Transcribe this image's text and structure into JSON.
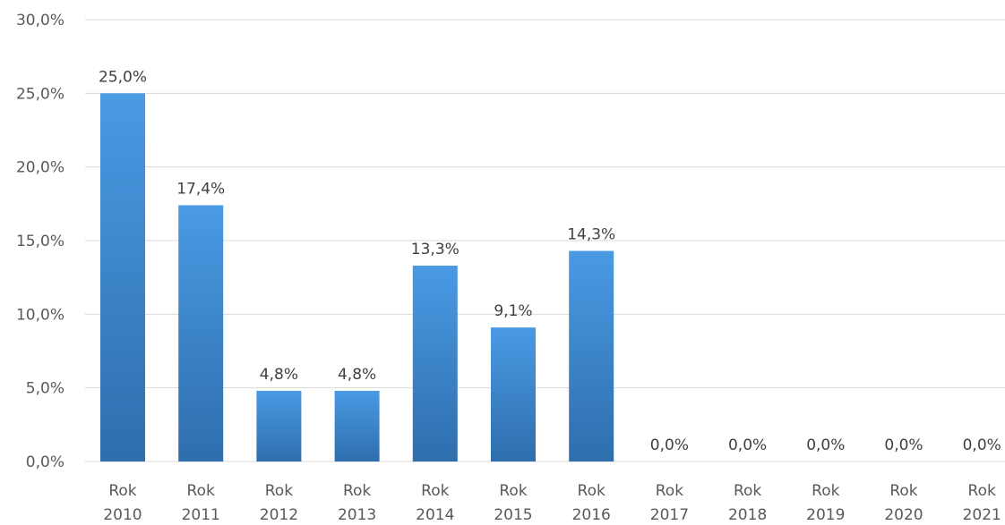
{
  "chart_data": {
    "type": "bar",
    "categories": [
      [
        "Rok",
        "2010"
      ],
      [
        "Rok",
        "2011"
      ],
      [
        "Rok",
        "2012"
      ],
      [
        "Rok",
        "2013"
      ],
      [
        "Rok",
        "2014"
      ],
      [
        "Rok",
        "2015"
      ],
      [
        "Rok",
        "2016"
      ],
      [
        "Rok",
        "2017"
      ],
      [
        "Rok",
        "2018"
      ],
      [
        "Rok",
        "2019"
      ],
      [
        "Rok",
        "2020"
      ],
      [
        "Rok",
        "2021"
      ]
    ],
    "values": [
      25.0,
      17.4,
      4.8,
      4.8,
      13.3,
      9.1,
      14.3,
      0.0,
      0.0,
      0.0,
      0.0,
      0.0
    ],
    "data_labels": [
      "25,0%",
      "17,4%",
      "4,8%",
      "4,8%",
      "13,3%",
      "9,1%",
      "14,3%",
      "0,0%",
      "0,0%",
      "0,0%",
      "0,0%",
      "0,0%"
    ],
    "y_ticks": [
      0,
      5,
      10,
      15,
      20,
      25,
      30
    ],
    "y_tick_labels": [
      "0,0%",
      "5,0%",
      "10,0%",
      "15,0%",
      "20,0%",
      "25,0%",
      "30,0%"
    ],
    "ylim": [
      0,
      30
    ],
    "title": "",
    "xlabel": "",
    "ylabel": "",
    "grid": true,
    "legend": "none",
    "colors": {
      "bar_top": "#4a9ae4",
      "bar_bottom": "#2e6ead",
      "grid": "#d9d9d9"
    }
  }
}
